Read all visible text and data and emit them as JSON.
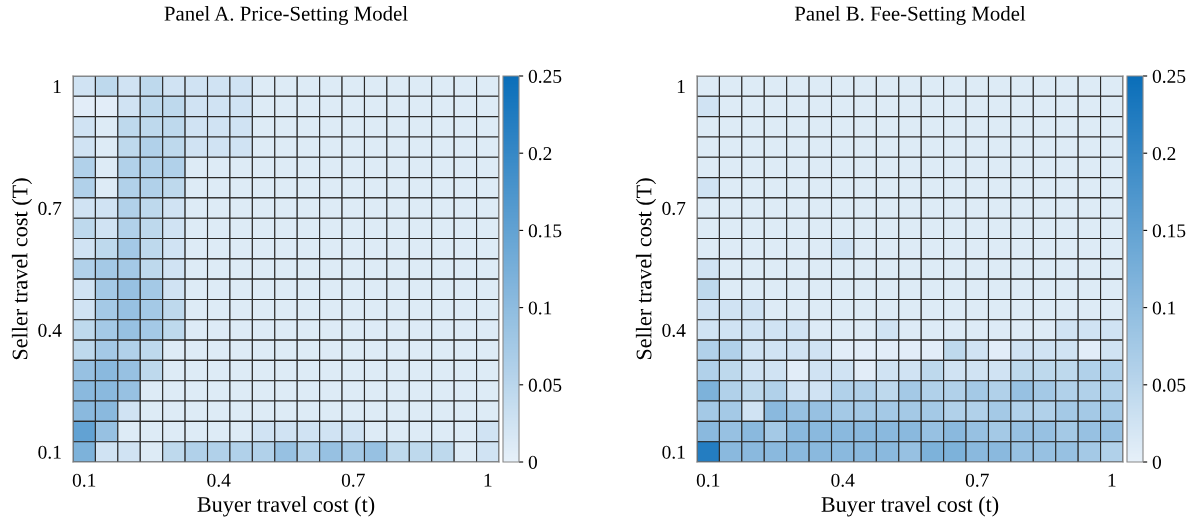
{
  "chart_data": [
    {
      "type": "heatmap",
      "title": "Panel A. Price-Setting Model",
      "xlabel": "Buyer travel cost (t)",
      "ylabel": "Seller travel cost (T)",
      "categories": [
        "0.1",
        null,
        null,
        null,
        null,
        null,
        "0.4",
        null,
        null,
        null,
        null,
        null,
        "0.7",
        null,
        null,
        null,
        null,
        null,
        "1"
      ],
      "y_categories": [
        "1",
        null,
        null,
        null,
        null,
        null,
        "0.7",
        null,
        null,
        null,
        null,
        null,
        "0.4",
        null,
        null,
        null,
        null,
        null,
        "0.1"
      ],
      "clim": [
        0,
        0.25
      ],
      "cticks": [
        0,
        0.05,
        0.1,
        0.15,
        0.2,
        0.25
      ],
      "cells": [
        [
          0.025,
          0.045,
          0.025,
          0.045,
          0.025,
          0.025,
          0.025,
          0.025,
          0.01,
          0.01,
          0.01,
          0.01,
          0.01,
          0.01,
          0.01,
          0.01,
          0.01,
          0.01,
          0.01
        ],
        [
          0.005,
          0.005,
          0.025,
          0.045,
          0.045,
          0.025,
          0.025,
          0.025,
          0.01,
          0.01,
          0.01,
          0.01,
          0.01,
          0.01,
          0.01,
          0.01,
          0.01,
          0.01,
          0.01
        ],
        [
          0.025,
          0.01,
          0.045,
          0.045,
          0.045,
          0.025,
          0.025,
          0.025,
          0.01,
          0.01,
          0.01,
          0.01,
          0.01,
          0.01,
          0.01,
          0.01,
          0.01,
          0.01,
          0.01
        ],
        [
          0.025,
          0.01,
          0.045,
          0.06,
          0.045,
          0.025,
          0.025,
          0.025,
          0.01,
          0.01,
          0.01,
          0.01,
          0.01,
          0.01,
          0.01,
          0.01,
          0.01,
          0.01,
          0.01
        ],
        [
          0.06,
          0.01,
          0.06,
          0.06,
          0.06,
          0.01,
          0.01,
          0.01,
          0.01,
          0.01,
          0.01,
          0.01,
          0.01,
          0.01,
          0.01,
          0.01,
          0.01,
          0.01,
          0.01
        ],
        [
          0.06,
          0.01,
          0.06,
          0.06,
          0.045,
          0.01,
          0.01,
          0.01,
          0.01,
          0.01,
          0.01,
          0.01,
          0.01,
          0.01,
          0.01,
          0.01,
          0.01,
          0.01,
          0.01
        ],
        [
          0.025,
          0.025,
          0.06,
          0.045,
          0.025,
          0.01,
          0.01,
          0.01,
          0.01,
          0.01,
          0.01,
          0.01,
          0.01,
          0.01,
          0.01,
          0.01,
          0.01,
          0.01,
          0.01
        ],
        [
          0.045,
          0.025,
          0.06,
          0.045,
          0.025,
          0.01,
          0.01,
          0.01,
          0.01,
          0.01,
          0.01,
          0.01,
          0.01,
          0.01,
          0.01,
          0.01,
          0.01,
          0.01,
          0.01
        ],
        [
          0.025,
          0.045,
          0.075,
          0.045,
          0.025,
          0.01,
          0.01,
          0.01,
          0.01,
          0.01,
          0.01,
          0.01,
          0.01,
          0.01,
          0.01,
          0.01,
          0.01,
          0.01,
          0.01
        ],
        [
          0.06,
          0.075,
          0.075,
          0.045,
          0.025,
          0.01,
          0.01,
          0.01,
          0.01,
          0.01,
          0.01,
          0.01,
          0.01,
          0.01,
          0.01,
          0.01,
          0.01,
          0.01,
          0.01
        ],
        [
          0.025,
          0.075,
          0.09,
          0.075,
          0.025,
          0.01,
          0.01,
          0.01,
          0.01,
          0.01,
          0.01,
          0.01,
          0.01,
          0.01,
          0.01,
          0.01,
          0.01,
          0.01,
          0.01
        ],
        [
          0.025,
          0.075,
          0.09,
          0.075,
          0.045,
          0.01,
          0.01,
          0.01,
          0.01,
          0.01,
          0.01,
          0.01,
          0.01,
          0.01,
          0.01,
          0.01,
          0.01,
          0.01,
          0.01
        ],
        [
          0.045,
          0.075,
          0.09,
          0.075,
          0.045,
          0.01,
          0.01,
          0.01,
          0.01,
          0.01,
          0.01,
          0.01,
          0.01,
          0.01,
          0.01,
          0.01,
          0.01,
          0.01,
          0.01
        ],
        [
          0.045,
          0.075,
          0.06,
          0.045,
          0.01,
          0.01,
          0.01,
          0.01,
          0.01,
          0.01,
          0.01,
          0.01,
          0.01,
          0.01,
          0.01,
          0.01,
          0.01,
          0.01,
          0.01
        ],
        [
          0.09,
          0.105,
          0.09,
          0.045,
          0.01,
          0.01,
          0.01,
          0.01,
          0.01,
          0.01,
          0.01,
          0.01,
          0.01,
          0.01,
          0.01,
          0.01,
          0.01,
          0.01,
          0.01
        ],
        [
          0.105,
          0.105,
          0.09,
          0.01,
          0.01,
          0.01,
          0.01,
          0.01,
          0.01,
          0.01,
          0.01,
          0.01,
          0.01,
          0.01,
          0.01,
          0.01,
          0.01,
          0.01,
          0.01
        ],
        [
          0.105,
          0.105,
          0.025,
          0.01,
          0.01,
          0.01,
          0.01,
          0.01,
          0.01,
          0.01,
          0.01,
          0.01,
          0.01,
          0.01,
          0.01,
          0.01,
          0.01,
          0.01,
          0.01
        ],
        [
          0.15,
          0.09,
          0.01,
          0.01,
          0.01,
          0.01,
          0.01,
          0.01,
          0.025,
          0.025,
          0.025,
          0.025,
          0.025,
          0.01,
          0.01,
          0.01,
          0.01,
          0.01,
          0.025
        ],
        [
          0.12,
          0.025,
          0.025,
          0.01,
          0.045,
          0.06,
          0.06,
          0.06,
          0.06,
          0.09,
          0.06,
          0.09,
          0.075,
          0.09,
          0.045,
          0.045,
          0.045,
          0.01,
          0.025
        ]
      ]
    },
    {
      "type": "heatmap",
      "title": "Panel B. Fee-Setting Model",
      "xlabel": "Buyer travel cost (t)",
      "ylabel": "Seller travel cost (T)",
      "categories": [
        "0.1",
        null,
        null,
        null,
        null,
        null,
        "0.4",
        null,
        null,
        null,
        null,
        null,
        "0.7",
        null,
        null,
        null,
        null,
        null,
        "1"
      ],
      "y_categories": [
        "1",
        null,
        null,
        null,
        null,
        null,
        "0.7",
        null,
        null,
        null,
        null,
        null,
        "0.4",
        null,
        null,
        null,
        null,
        null,
        "0.1"
      ],
      "clim": [
        0,
        0.25
      ],
      "cticks": [
        0,
        0.05,
        0.1,
        0.15,
        0.2,
        0.25
      ],
      "cells": [
        [
          0.01,
          0.01,
          0.01,
          0.01,
          0.01,
          0.01,
          0.01,
          0.01,
          0.01,
          0.01,
          0.01,
          0.01,
          0.01,
          0.01,
          0.01,
          0.01,
          0.01,
          0.01,
          0.01
        ],
        [
          0.025,
          0.01,
          0.01,
          0.01,
          0.01,
          0.01,
          0.01,
          0.01,
          0.01,
          0.01,
          0.01,
          0.01,
          0.01,
          0.01,
          0.01,
          0.01,
          0.01,
          0.01,
          0.01
        ],
        [
          0.01,
          0.01,
          0.01,
          0.01,
          0.01,
          0.01,
          0.01,
          0.01,
          0.01,
          0.01,
          0.01,
          0.01,
          0.01,
          0.01,
          0.01,
          0.01,
          0.01,
          0.01,
          0.01
        ],
        [
          0.01,
          0.01,
          0.01,
          0.01,
          0.01,
          0.01,
          0.01,
          0.01,
          0.01,
          0.01,
          0.01,
          0.01,
          0.01,
          0.01,
          0.01,
          0.01,
          0.01,
          0.01,
          0.01
        ],
        [
          0.01,
          0.01,
          0.01,
          0.01,
          0.01,
          0.01,
          0.01,
          0.01,
          0.01,
          0.01,
          0.01,
          0.01,
          0.01,
          0.01,
          0.01,
          0.01,
          0.01,
          0.01,
          0.01
        ],
        [
          0.025,
          0.01,
          0.01,
          0.01,
          0.01,
          0.01,
          0.01,
          0.01,
          0.01,
          0.01,
          0.01,
          0.01,
          0.01,
          0.01,
          0.01,
          0.01,
          0.01,
          0.01,
          0.01
        ],
        [
          0.01,
          0.01,
          0.01,
          0.01,
          0.01,
          0.01,
          0.01,
          0.01,
          0.01,
          0.01,
          0.01,
          0.01,
          0.01,
          0.01,
          0.01,
          0.01,
          0.01,
          0.01,
          0.01
        ],
        [
          0.01,
          0.01,
          0.01,
          0.01,
          0.01,
          0.01,
          0.01,
          0.01,
          0.01,
          0.01,
          0.01,
          0.01,
          0.01,
          0.01,
          0.01,
          0.01,
          0.01,
          0.01,
          0.01
        ],
        [
          0.01,
          0.01,
          0.01,
          0.01,
          0.01,
          0.01,
          0.025,
          0.01,
          0.01,
          0.01,
          0.01,
          0.01,
          0.01,
          0.01,
          0.01,
          0.01,
          0.01,
          0.01,
          0.01
        ],
        [
          0.025,
          0.01,
          0.01,
          0.01,
          0.01,
          0.01,
          0.01,
          0.01,
          0.01,
          0.01,
          0.01,
          0.01,
          0.01,
          0.01,
          0.01,
          0.01,
          0.01,
          0.01,
          0.01
        ],
        [
          0.045,
          0.01,
          0.01,
          0.01,
          0.01,
          0.01,
          0.01,
          0.01,
          0.01,
          0.01,
          0.01,
          0.01,
          0.01,
          0.01,
          0.01,
          0.01,
          0.01,
          0.01,
          0.01
        ],
        [
          0.025,
          0.025,
          0.025,
          0.01,
          0.01,
          0.01,
          0.01,
          0.01,
          0.01,
          0.01,
          0.01,
          0.01,
          0.01,
          0.01,
          0.01,
          0.01,
          0.01,
          0.01,
          0.01
        ],
        [
          0.025,
          0.025,
          0.025,
          0.025,
          0.025,
          0.01,
          0.01,
          0.01,
          0.025,
          0.01,
          0.01,
          0.01,
          0.01,
          0.01,
          0.01,
          0.01,
          0.025,
          0.025,
          0.025
        ],
        [
          0.06,
          0.06,
          0.025,
          0.025,
          0.025,
          0.025,
          0.005,
          0.005,
          0.005,
          0.005,
          0.005,
          0.045,
          0.025,
          0.005,
          0.025,
          0.025,
          0.025,
          0.005,
          0.025
        ],
        [
          0.06,
          0.045,
          0.025,
          0.025,
          0.005,
          0.025,
          0.025,
          0.005,
          0.025,
          0.025,
          0.045,
          0.025,
          0.025,
          0.025,
          0.045,
          0.045,
          0.045,
          0.06,
          0.06
        ],
        [
          0.12,
          0.06,
          0.045,
          0.06,
          0.025,
          0.025,
          0.06,
          0.06,
          0.045,
          0.075,
          0.06,
          0.06,
          0.075,
          0.06,
          0.09,
          0.075,
          0.06,
          0.06,
          0.06
        ],
        [
          0.075,
          0.075,
          0.025,
          0.105,
          0.09,
          0.09,
          0.075,
          0.075,
          0.075,
          0.075,
          0.075,
          0.06,
          0.06,
          0.075,
          0.06,
          0.06,
          0.075,
          0.075,
          0.075
        ],
        [
          0.105,
          0.09,
          0.105,
          0.075,
          0.105,
          0.105,
          0.105,
          0.105,
          0.105,
          0.105,
          0.09,
          0.105,
          0.09,
          0.075,
          0.09,
          0.09,
          0.075,
          0.09,
          0.09
        ],
        [
          0.22,
          0.105,
          0.105,
          0.105,
          0.105,
          0.105,
          0.105,
          0.105,
          0.105,
          0.09,
          0.12,
          0.12,
          0.105,
          0.105,
          0.09,
          0.09,
          0.09,
          0.075,
          0.06
        ]
      ]
    }
  ]
}
